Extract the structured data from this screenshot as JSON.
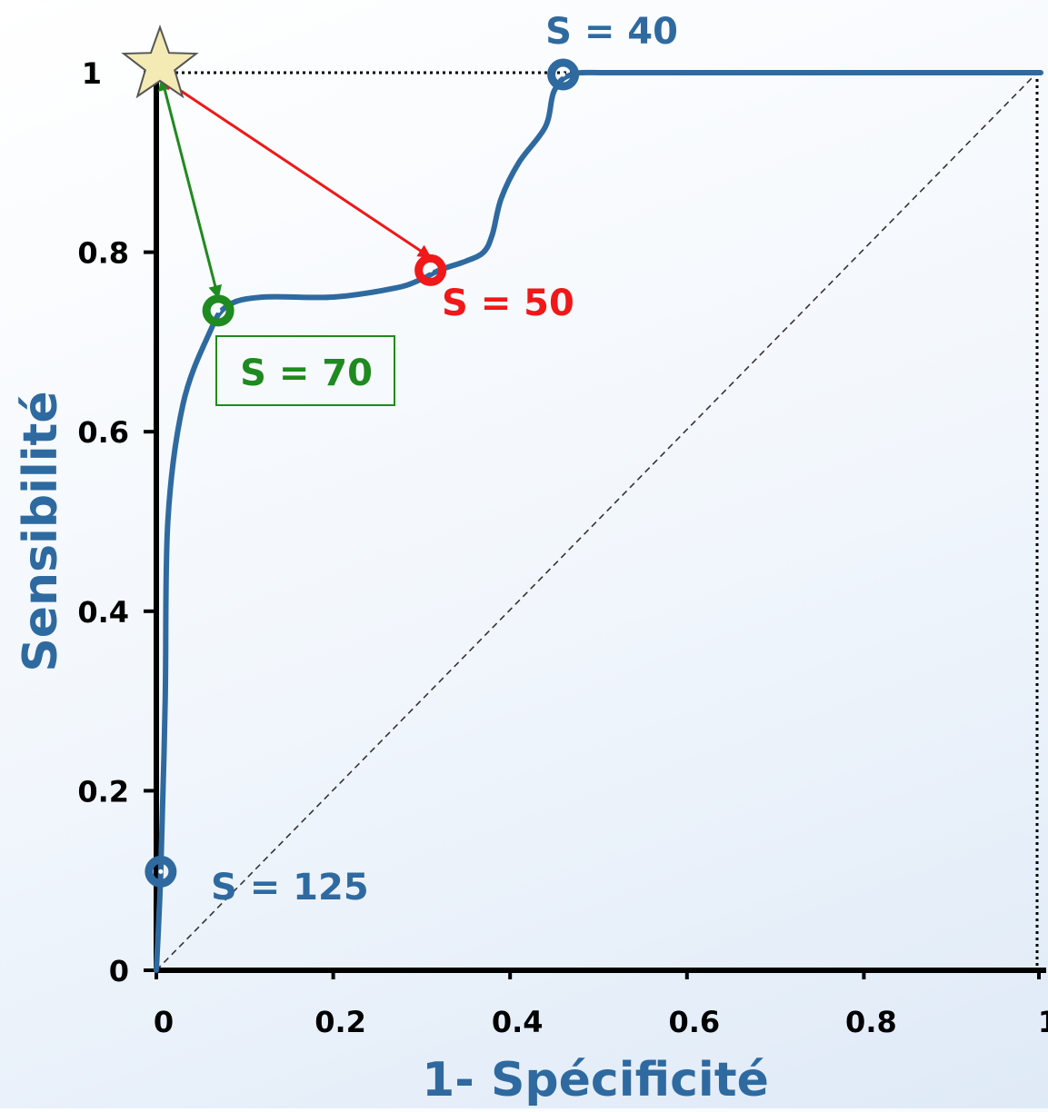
{
  "colors": {
    "curve": "#2e6aa0",
    "axis_title": "#2e6aa0",
    "red": "#f01818",
    "green": "#1f8a1f",
    "star_fill": "#f3eab4",
    "star_stroke": "#555555"
  },
  "chart_data": {
    "type": "line",
    "title": "",
    "xlabel": "1- Spécificité",
    "ylabel": "Sensibilité",
    "xlim": [
      0,
      1
    ],
    "ylim": [
      0,
      1
    ],
    "x_ticks": [
      "0",
      "0.2",
      "0.4",
      "0.6",
      "0.8",
      "1"
    ],
    "y_ticks": [
      "0",
      "0.2",
      "0.4",
      "0.6",
      "0.8",
      "1"
    ],
    "grid": false,
    "series": [
      {
        "x": [
          0.0,
          0.005,
          0.01,
          0.013,
          0.03,
          0.06,
          0.08,
          0.12,
          0.2,
          0.27,
          0.3,
          0.32,
          0.35,
          0.37,
          0.38,
          0.39,
          0.41,
          0.44,
          0.45,
          0.47,
          0.52,
          0.7,
          1.0
        ],
        "y": [
          0.0,
          0.11,
          0.3,
          0.5,
          0.63,
          0.71,
          0.74,
          0.75,
          0.75,
          0.76,
          0.77,
          0.78,
          0.79,
          0.8,
          0.82,
          0.86,
          0.9,
          0.94,
          0.98,
          0.998,
          1.0,
          1.0,
          1.0
        ]
      }
    ],
    "reference_line": {
      "x": [
        0,
        1
      ],
      "y": [
        0,
        1
      ],
      "style": "dashed"
    },
    "ideal_point": {
      "x": 0,
      "y": 1,
      "marker": "star"
    },
    "points": [
      {
        "label": "S = 125",
        "x": 0.005,
        "y": 0.11,
        "color": "curve"
      },
      {
        "label": "S = 70",
        "x": 0.07,
        "y": 0.735,
        "color": "green",
        "boxed": true
      },
      {
        "label": "S = 50",
        "x": 0.31,
        "y": 0.78,
        "color": "red"
      },
      {
        "label": "S = 40",
        "x": 0.46,
        "y": 0.998,
        "color": "curve"
      }
    ],
    "arrows": [
      {
        "from": [
          0,
          1
        ],
        "to": [
          0.07,
          0.735
        ],
        "color": "green"
      },
      {
        "from": [
          0,
          1
        ],
        "to": [
          0.31,
          0.78
        ],
        "color": "red"
      }
    ]
  }
}
